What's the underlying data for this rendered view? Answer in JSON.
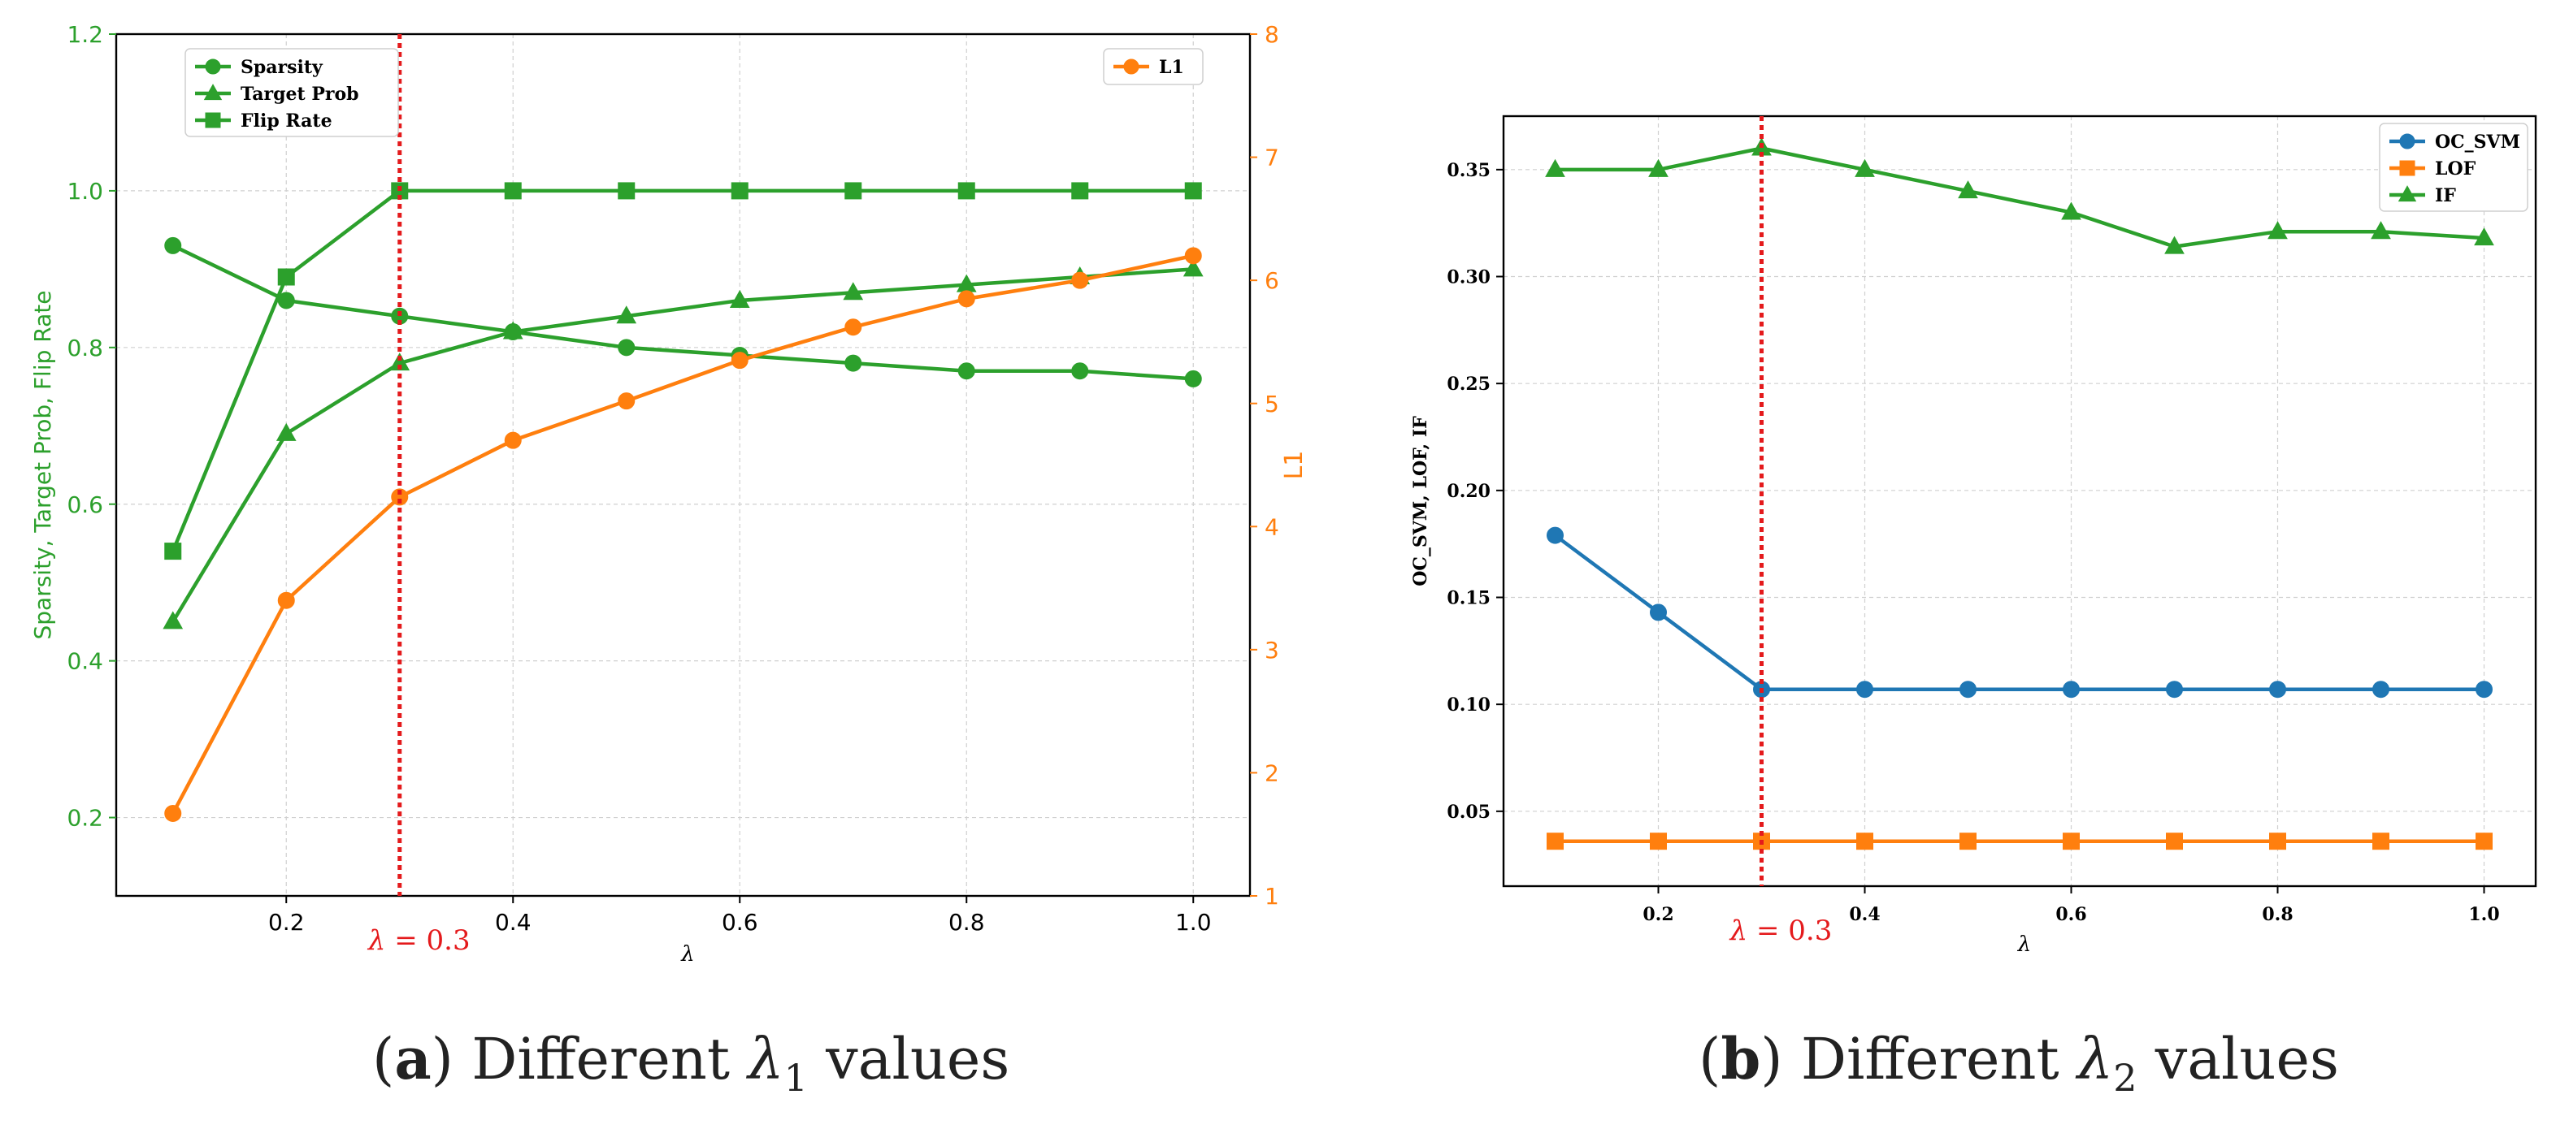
{
  "chart_data": [
    {
      "type": "line",
      "panel_label": "a",
      "caption": "Different λ1 values",
      "xlabel": "λ",
      "ylabel_left": "Sparsity, Target Prob, Flip Rate",
      "ylabel_right": "L1",
      "xlim": [
        0.05,
        1.05
      ],
      "ylim_left": [
        0.1,
        1.2
      ],
      "ylim_right": [
        1,
        8
      ],
      "x_ticks": [
        0.2,
        0.4,
        0.6,
        0.8,
        1.0
      ],
      "y_ticks_left": [
        0.2,
        0.4,
        0.6,
        0.8,
        1.0,
        1.2
      ],
      "y_ticks_right": [
        1,
        2,
        3,
        4,
        5,
        6,
        7,
        8
      ],
      "grid": true,
      "legend_left_placement": "upper-left",
      "legend_right_placement": "upper-right",
      "vline": {
        "x": 0.3,
        "label": "λ = 0.3",
        "color": "#e41a1c"
      },
      "axis_colors": {
        "left": "#2ca02c",
        "right": "#ff7f0e"
      },
      "x": [
        0.1,
        0.2,
        0.3,
        0.4,
        0.5,
        0.6,
        0.7,
        0.8,
        0.9,
        1.0
      ],
      "series": [
        {
          "name": "Sparsity",
          "axis": "left",
          "marker": "circle",
          "color": "#2ca02c",
          "values": [
            0.93,
            0.86,
            0.84,
            0.82,
            0.8,
            0.79,
            0.78,
            0.77,
            0.77,
            0.76
          ]
        },
        {
          "name": "Target Prob",
          "axis": "left",
          "marker": "triangle",
          "color": "#2ca02c",
          "values": [
            0.45,
            0.69,
            0.78,
            0.82,
            0.84,
            0.86,
            0.87,
            0.88,
            0.89,
            0.9
          ]
        },
        {
          "name": "Flip Rate",
          "axis": "left",
          "marker": "square",
          "color": "#2ca02c",
          "values": [
            0.54,
            0.89,
            1.0,
            1.0,
            1.0,
            1.0,
            1.0,
            1.0,
            1.0,
            1.0
          ]
        },
        {
          "name": "L1",
          "axis": "right",
          "marker": "circle",
          "color": "#ff7f0e",
          "values": [
            1.67,
            3.4,
            4.24,
            4.7,
            5.02,
            5.35,
            5.62,
            5.85,
            6.0,
            6.2
          ]
        }
      ]
    },
    {
      "type": "line",
      "panel_label": "b",
      "caption": "Different λ2 values",
      "xlabel": "λ",
      "ylabel": "OC_SVM, LOF, IF",
      "xlim": [
        0.05,
        1.05
      ],
      "ylim": [
        0.015,
        0.375
      ],
      "x_ticks": [
        0.2,
        0.4,
        0.6,
        0.8,
        1.0
      ],
      "y_ticks": [
        0.05,
        0.1,
        0.15,
        0.2,
        0.25,
        0.3,
        0.35
      ],
      "grid": true,
      "legend_placement": "upper-right",
      "vline": {
        "x": 0.3,
        "label": "λ = 0.3",
        "color": "#e41a1c"
      },
      "x": [
        0.1,
        0.2,
        0.3,
        0.4,
        0.5,
        0.6,
        0.7,
        0.8,
        0.9,
        1.0
      ],
      "series": [
        {
          "name": "OC_SVM",
          "marker": "circle",
          "color": "#1f77b4",
          "values": [
            0.179,
            0.143,
            0.107,
            0.107,
            0.107,
            0.107,
            0.107,
            0.107,
            0.107,
            0.107
          ]
        },
        {
          "name": "LOF",
          "marker": "square",
          "color": "#ff7f0e",
          "values": [
            0.036,
            0.036,
            0.036,
            0.036,
            0.036,
            0.036,
            0.036,
            0.036,
            0.036,
            0.036
          ]
        },
        {
          "name": "IF",
          "marker": "triangle",
          "color": "#2ca02c",
          "values": [
            0.35,
            0.35,
            0.36,
            0.35,
            0.34,
            0.33,
            0.314,
            0.321,
            0.321,
            0.318
          ]
        }
      ]
    }
  ]
}
